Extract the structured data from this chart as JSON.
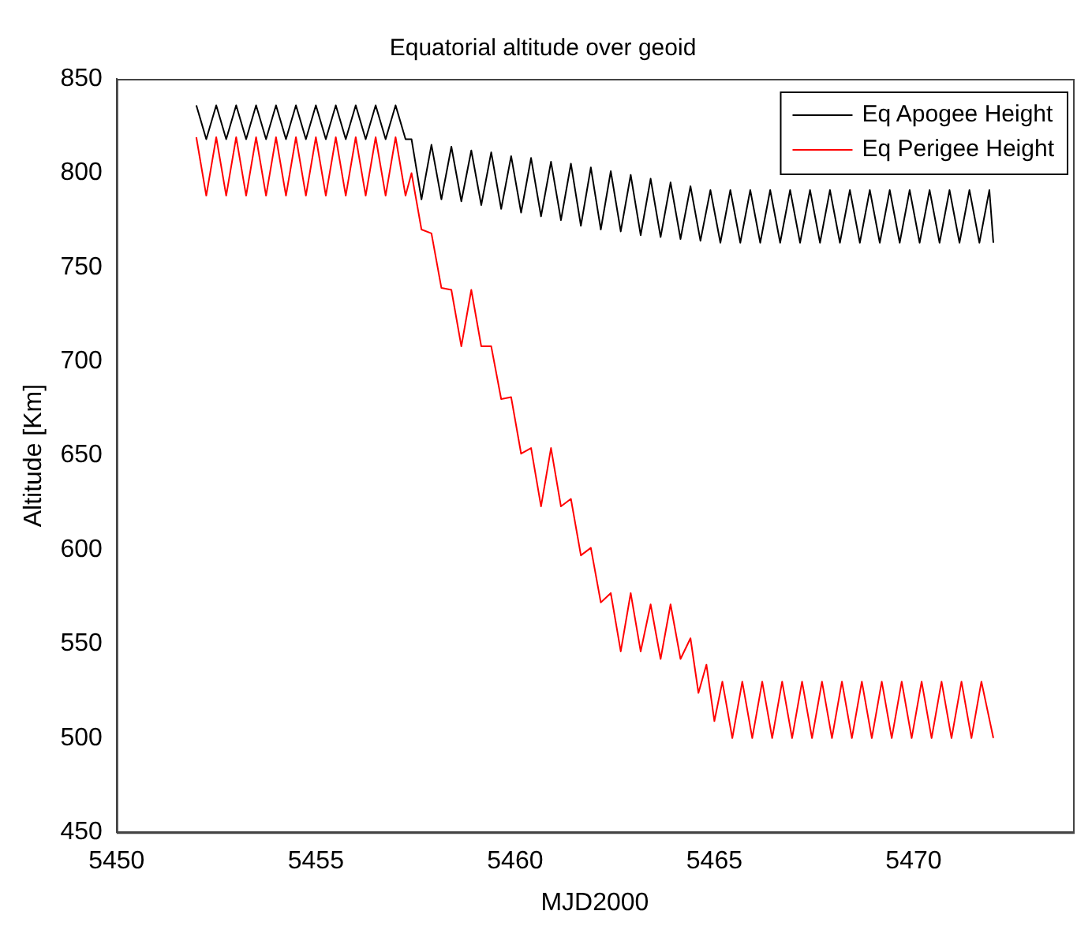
{
  "chart_data": {
    "type": "line",
    "title": "Equatorial altitude over geoid",
    "xlabel": "MJD2000",
    "ylabel": "Altitude [Km]",
    "xlim": [
      5450,
      5474
    ],
    "xticks": [
      5450,
      5455,
      5460,
      5465,
      5470
    ],
    "ylim": [
      450,
      850
    ],
    "yticks": [
      450,
      500,
      550,
      600,
      650,
      700,
      750,
      800,
      850
    ],
    "grid": false,
    "legend": "top right",
    "marker": "none",
    "line_style": "solid",
    "series": [
      {
        "name": "Eq Apogee Height",
        "color": "#000000",
        "x": [
          5452,
          5452.25,
          5452.5,
          5452.75,
          5453,
          5453.25,
          5453.5,
          5453.75,
          5454,
          5454.25,
          5454.5,
          5454.75,
          5455,
          5455.25,
          5455.5,
          5455.75,
          5456,
          5456.25,
          5456.5,
          5456.75,
          5457,
          5457.25,
          5457.4,
          5457.65,
          5457.9,
          5458.15,
          5458.4,
          5458.65,
          5458.9,
          5459.15,
          5459.4,
          5459.65,
          5459.9,
          5460.15,
          5460.4,
          5460.65,
          5460.9,
          5461.15,
          5461.4,
          5461.65,
          5461.9,
          5462.15,
          5462.4,
          5462.65,
          5462.9,
          5463.15,
          5463.4,
          5463.65,
          5463.9,
          5464.15,
          5464.4,
          5464.65,
          5464.9,
          5465.15,
          5465.4,
          5465.65,
          5465.9,
          5466.15,
          5466.4,
          5466.65,
          5466.9,
          5467.15,
          5467.4,
          5467.65,
          5467.9,
          5468.15,
          5468.4,
          5468.65,
          5468.9,
          5469.15,
          5469.4,
          5469.65,
          5469.9,
          5470.15,
          5470.4,
          5470.65,
          5470.9,
          5471.15,
          5471.4,
          5471.65,
          5471.9,
          5472
        ],
        "values": [
          836,
          818,
          836,
          818,
          836,
          818,
          836,
          818,
          836,
          818,
          836,
          818,
          836,
          818,
          836,
          818,
          836,
          818,
          836,
          818,
          836,
          818,
          818,
          786,
          815,
          786,
          814,
          785,
          812,
          783,
          811,
          781,
          809,
          779,
          808,
          777,
          806,
          775,
          805,
          772,
          803,
          770,
          801,
          769,
          799,
          767,
          797,
          766,
          795,
          765,
          793,
          764,
          791,
          763,
          791,
          763,
          791,
          763,
          791,
          763,
          791,
          763,
          791,
          763,
          791,
          763,
          791,
          763,
          791,
          763,
          791,
          763,
          791,
          763,
          791,
          763,
          791,
          763,
          791,
          763,
          791,
          763
        ]
      },
      {
        "name": "Eq Perigee Height",
        "color": "#ff0000",
        "x": [
          5452,
          5452.25,
          5452.5,
          5452.75,
          5453,
          5453.25,
          5453.5,
          5453.75,
          5454,
          5454.25,
          5454.5,
          5454.75,
          5455,
          5455.25,
          5455.5,
          5455.75,
          5456,
          5456.25,
          5456.5,
          5456.75,
          5457,
          5457.25,
          5457.4,
          5457.65,
          5457.9,
          5458.15,
          5458.4,
          5458.65,
          5458.9,
          5459.15,
          5459.4,
          5459.65,
          5459.9,
          5460.15,
          5460.4,
          5460.65,
          5460.9,
          5461.15,
          5461.4,
          5461.65,
          5461.9,
          5462.15,
          5462.4,
          5462.65,
          5462.9,
          5463.15,
          5463.4,
          5463.65,
          5463.9,
          5464.15,
          5464.4,
          5464.6,
          5464.8,
          5465,
          5465.2,
          5465.45,
          5465.7,
          5465.95,
          5466.2,
          5466.45,
          5466.7,
          5466.95,
          5467.2,
          5467.45,
          5467.7,
          5467.95,
          5468.2,
          5468.45,
          5468.7,
          5468.95,
          5469.2,
          5469.45,
          5469.7,
          5469.95,
          5470.2,
          5470.45,
          5470.7,
          5470.95,
          5471.2,
          5471.45,
          5471.7,
          5472
        ],
        "values": [
          819,
          788,
          819,
          788,
          819,
          788,
          819,
          788,
          819,
          788,
          819,
          788,
          819,
          788,
          819,
          788,
          819,
          788,
          819,
          788,
          819,
          788,
          800,
          770,
          768,
          739,
          738,
          708,
          738,
          708,
          708,
          680,
          681,
          651,
          654,
          623,
          654,
          623,
          627,
          597,
          601,
          572,
          577,
          546,
          577,
          546,
          571,
          542,
          571,
          542,
          553,
          524,
          539,
          509,
          530,
          500,
          530,
          500,
          530,
          500,
          530,
          500,
          530,
          500,
          530,
          500,
          530,
          500,
          530,
          500,
          530,
          500,
          530,
          500,
          530,
          500,
          530,
          500,
          530,
          500,
          530,
          500
        ]
      }
    ]
  }
}
